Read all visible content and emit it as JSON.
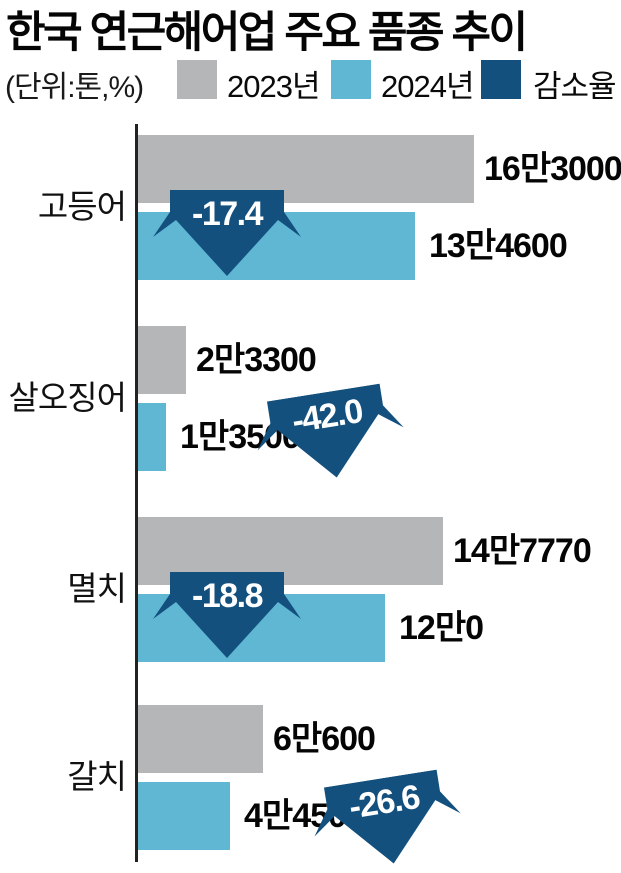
{
  "title": "한국 연근해어업 주요 품종 추이",
  "legend": {
    "unit_label": "(단위:톤,%)",
    "items": [
      {
        "label": "2023년",
        "color": "#b4b6b8"
      },
      {
        "label": "2024년",
        "color": "#5fb7d3"
      },
      {
        "label": "감소율",
        "color": "#13507e"
      }
    ]
  },
  "chart_data": {
    "type": "bar",
    "orientation": "horizontal",
    "title": "한국 연근해어업 주요 품종 추이",
    "unit": "(단위:톤,%)",
    "categories": [
      "고등어",
      "살오징어",
      "멸치",
      "갈치"
    ],
    "series": [
      {
        "name": "2023년",
        "color": "#b4b6b8",
        "values": [
          163000,
          23300,
          147770,
          60600
        ],
        "labels": [
          "16만3000",
          "2만3300",
          "14만7770",
          "6만600"
        ]
      },
      {
        "name": "2024년",
        "color": "#5fb7d3",
        "values": [
          134600,
          13500,
          120000,
          44500
        ],
        "labels": [
          "13만4600",
          "1만3500",
          "12만0",
          "4만4500"
        ]
      }
    ],
    "decrease_rate": {
      "name": "감소율",
      "color": "#13507e",
      "values": [
        -17.4,
        -42.0,
        -18.8,
        -26.6
      ],
      "labels": [
        "-17.4",
        "-42.0",
        "-18.8",
        "-26.6"
      ]
    },
    "xlim": [
      0,
      170000
    ],
    "grid": false,
    "legend_position": "top"
  }
}
